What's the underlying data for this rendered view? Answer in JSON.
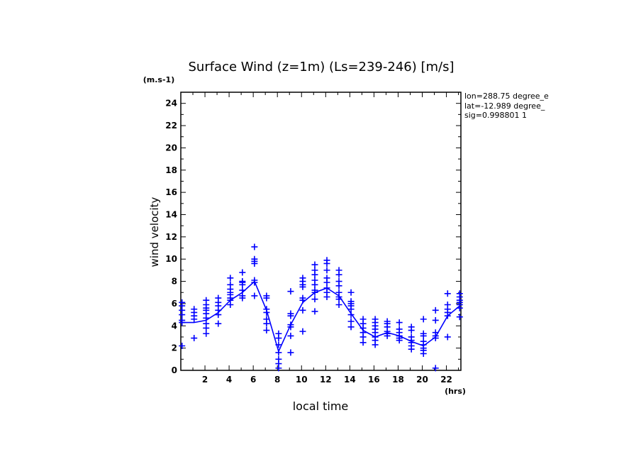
{
  "chart_data": {
    "type": "scatter",
    "title": "Surface Wind (z=1m) (Ls=239-246) [m/s]",
    "yunit": "(m.s-1)",
    "xunit": "(hrs)",
    "xlabel": "local time",
    "ylabel": "wind velocity",
    "xlim": [
      0,
      23.2
    ],
    "ylim": [
      0,
      25
    ],
    "xticks": [
      2,
      4,
      6,
      8,
      10,
      12,
      14,
      16,
      18,
      20,
      22
    ],
    "yticks": [
      0,
      2,
      4,
      6,
      8,
      10,
      12,
      14,
      16,
      18,
      20,
      22,
      24
    ],
    "grid": false,
    "color": "#0000ff",
    "info": [
      "lon=288.75 degree_e",
      "lat=-12.989 degree_",
      "sig=0.998801 1"
    ],
    "mean_line": {
      "x": [
        0.1,
        1.1,
        2.1,
        3.1,
        4.1,
        5.1,
        6.1,
        7.1,
        8.1,
        9.1,
        10.1,
        11.1,
        12.1,
        13.1,
        14.1,
        15.1,
        16.1,
        17.1,
        18.1,
        19.1,
        20.1,
        21.1,
        22.1,
        23.1
      ],
      "y": [
        4.3,
        4.3,
        4.5,
        5.2,
        6.3,
        7.0,
        8.0,
        5.4,
        1.7,
        4.1,
        6.1,
        7.0,
        7.4,
        6.7,
        5.1,
        3.6,
        3.0,
        3.4,
        3.1,
        2.6,
        2.2,
        3.0,
        4.9,
        5.8
      ]
    },
    "samples": [
      {
        "x": 0.1,
        "y": [
          2.2,
          4.3,
          4.5,
          5.0,
          5.4,
          5.8,
          6.1
        ]
      },
      {
        "x": 1.1,
        "y": [
          2.9,
          4.6,
          4.9,
          5.2,
          5.5
        ]
      },
      {
        "x": 2.1,
        "y": [
          3.3,
          3.8,
          4.2,
          4.7,
          5.1,
          5.4,
          5.6,
          5.9,
          6.3
        ]
      },
      {
        "x": 3.1,
        "y": [
          4.2,
          5.0,
          5.4,
          5.8,
          6.1,
          6.5
        ]
      },
      {
        "x": 4.1,
        "y": [
          5.9,
          6.3,
          6.5,
          6.8,
          7.0,
          7.3,
          7.7,
          8.3
        ]
      },
      {
        "x": 5.1,
        "y": [
          6.5,
          6.7,
          7.2,
          7.7,
          7.9,
          8.0,
          8.8
        ]
      },
      {
        "x": 6.1,
        "y": [
          6.7,
          7.9,
          8.1,
          9.6,
          9.8,
          10.0,
          11.1
        ]
      },
      {
        "x": 7.1,
        "y": [
          3.6,
          4.2,
          4.6,
          5.2,
          5.5,
          6.5,
          6.7
        ]
      },
      {
        "x": 8.1,
        "y": [
          0.2,
          0.6,
          1.0,
          1.6,
          2.3,
          2.9,
          3.3
        ]
      },
      {
        "x": 9.1,
        "y": [
          1.6,
          3.1,
          3.9,
          4.1,
          4.9,
          5.1,
          7.1
        ]
      },
      {
        "x": 10.1,
        "y": [
          3.5,
          5.4,
          6.3,
          6.5,
          7.5,
          7.7,
          8.0,
          8.3
        ]
      },
      {
        "x": 11.1,
        "y": [
          5.3,
          6.4,
          7.0,
          7.2,
          7.7,
          8.1,
          8.6,
          9.0,
          9.5
        ]
      },
      {
        "x": 12.1,
        "y": [
          6.6,
          7.0,
          7.4,
          7.9,
          8.3,
          9.0,
          9.6,
          9.9
        ]
      },
      {
        "x": 13.1,
        "y": [
          5.9,
          6.4,
          6.6,
          7.0,
          7.6,
          8.0,
          8.6,
          9.0
        ]
      },
      {
        "x": 14.1,
        "y": [
          3.9,
          4.4,
          5.0,
          5.5,
          5.8,
          6.0,
          6.2,
          7.0
        ]
      },
      {
        "x": 15.1,
        "y": [
          2.5,
          3.0,
          3.4,
          3.8,
          4.2,
          4.6
        ]
      },
      {
        "x": 16.1,
        "y": [
          2.3,
          2.7,
          3.0,
          3.4,
          3.7,
          4.0,
          4.3,
          4.6
        ]
      },
      {
        "x": 17.1,
        "y": [
          3.1,
          3.3,
          3.5,
          3.9,
          4.2,
          4.4
        ]
      },
      {
        "x": 18.1,
        "y": [
          2.7,
          2.9,
          3.1,
          3.4,
          3.7,
          4.3
        ]
      },
      {
        "x": 19.1,
        "y": [
          1.9,
          2.2,
          2.5,
          2.7,
          3.0,
          3.6,
          3.9
        ]
      },
      {
        "x": 20.1,
        "y": [
          1.5,
          1.8,
          2.0,
          2.3,
          2.6,
          3.1,
          3.3,
          4.6
        ]
      },
      {
        "x": 21.1,
        "y": [
          0.2,
          2.9,
          3.1,
          3.4,
          4.5,
          5.4
        ]
      },
      {
        "x": 22.1,
        "y": [
          3.0,
          4.9,
          5.2,
          5.5,
          5.9,
          6.9
        ]
      },
      {
        "x": 23.1,
        "y": [
          4.8,
          5.6,
          5.9,
          6.1,
          6.3,
          6.6,
          6.9
        ]
      }
    ]
  }
}
